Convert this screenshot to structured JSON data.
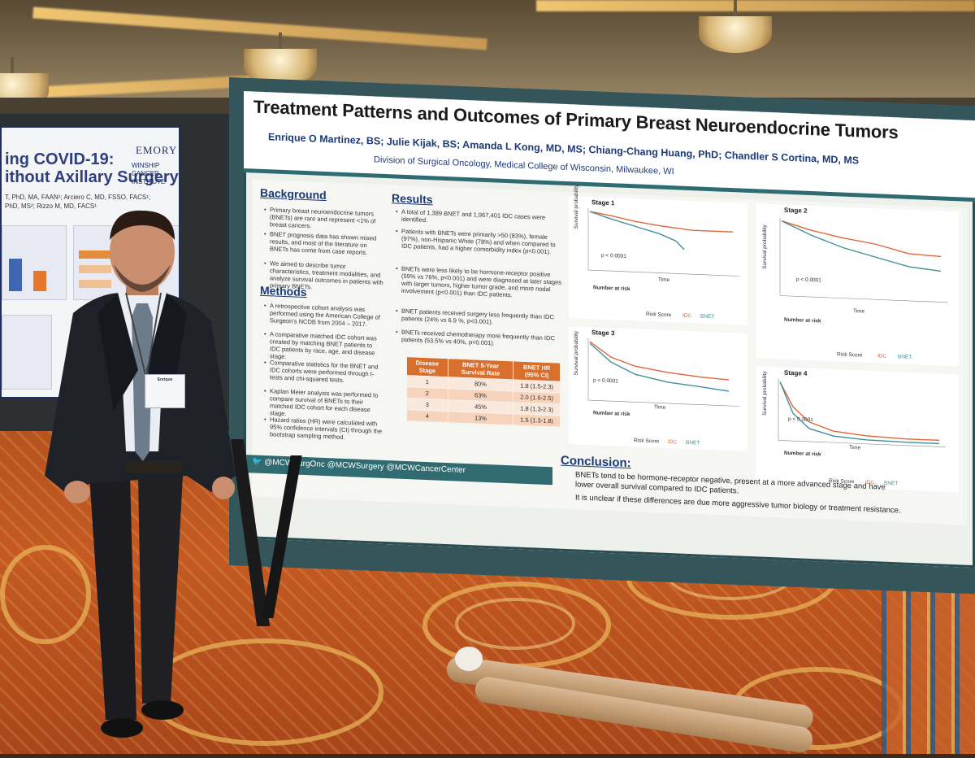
{
  "left_poster": {
    "title_line1": "ing COVID-19:",
    "title_line2": "ithout Axillary Surgery",
    "logo_emory": "EMORY",
    "logo_winship": "WINSHIP CANCER INSTITUTE",
    "authors_line1": "T, PhD, MA, FAAN¹; Arciero C, MD, FSSO, FACS¹;",
    "authors_line2": "PhD, MS²; Rizzo M, MD, FACS¹"
  },
  "poster": {
    "title": "Treatment Patterns and Outcomes of Primary Breast Neuroendocrine Tumors",
    "authors": "Enrique O Martinez, BS; Julie Kijak, BS; Amanda L Kong, MD, MS; Chiang-Chang Huang, PhD; Chandler S Cortina, MD, MS",
    "affiliation": "Division of Surgical Oncology, Medical College of Wisconsin, Milwaukee, WI",
    "background": {
      "heading": "Background",
      "bullets": [
        "Primary breast neuroendocrine tumors (BNETs) are rare and represent <1% of breast cancers.",
        "BNET prognosis data has shown mixed results, and most of the literature on BNETs has come from case reports.",
        "We aimed to describe tumor characteristics, treatment modalities, and analyze survival outcomes in patients with primary BNETs."
      ]
    },
    "methods": {
      "heading": "Methods",
      "bullets": [
        "A retrospective cohort analysis was performed using the American College of Surgeon's NCDB from 2004 – 2017.",
        "A comparative matched IDC cohort was created by matching BNET patients to IDC patients by race, age, and disease stage.",
        "Comparative statistics for the BNET and IDC cohorts were performed through t-tests and chi-squared tests.",
        "Kaplan Meier analysis was performed to compare survival of BNETs to their matched IDC cohort for each disease stage.",
        "Hazard ratios (HR) were calculated with 95% confidence intervals (CI) through the bootstrap sampling method."
      ]
    },
    "results": {
      "heading": "Results",
      "bullets": [
        "A total of 1,389 BNET and 1,967,401 IDC cases were identified.",
        "Patients with BNETs were primarily >50 (83%), female (97%), non-Hispanic White (78%) and when compared to IDC patients, had a higher comorbidity index (p<0.001).",
        "BNETs were less likely to be hormone-receptor positive (59% vs 76%, p<0.001) and were diagnosed at later stages with larger tumors, higher tumor grade, and more nodal involvement (p<0.001) than IDC patients.",
        "BNET patients received surgery less frequently than IDC patients (24% vs 6.9 %, p<0.001).",
        "BNETs received chemotherapy more frequently than IDC patients (53.5% vs 40%, p<0.001)."
      ],
      "table": {
        "headers": [
          "Disease Stage",
          "BNET 5-Year Survival Rate",
          "BNET HR (95% CI)"
        ],
        "rows": [
          [
            "1",
            "80%",
            "1.8 (1.5-2.3)"
          ],
          [
            "2",
            "63%",
            "2.0 (1.6-2.5)"
          ],
          [
            "3",
            "45%",
            "1.8 (1.3-2.3)"
          ],
          [
            "4",
            "13%",
            "1.5 (1.3-1.8)"
          ]
        ]
      }
    },
    "km_plots": [
      {
        "label": "Stage 1",
        "p": "p < 0.0001"
      },
      {
        "label": "Stage 2",
        "p": "p < 0.0001"
      },
      {
        "label": "Stage 3",
        "p": "p < 0.0001"
      },
      {
        "label": "Stage 4",
        "p": "p < 0.0001"
      }
    ],
    "km_common": {
      "ylabel": "Survival probability",
      "xlabel": "Time",
      "risk": "Number at risk",
      "legend_title": "Risk Score",
      "legend_idc": "IDC",
      "legend_bnet": "BNET",
      "idc_color": "#e0663a",
      "bnet_color": "#3f8f9a"
    },
    "conclusion": {
      "heading": "Conclusion:",
      "lines": [
        "BNETs tend to be hormone-receptor negative, present at a more advanced stage and have",
        "lower overall survival compared to IDC patients.",
        "It is unclear if these differences are due more aggressive tumor biology or treatment resistance."
      ]
    },
    "footer": "@MCWSurgOnc @MCWSurgery @MCWCancerCenter"
  },
  "badge": {
    "name": "Enrique"
  }
}
